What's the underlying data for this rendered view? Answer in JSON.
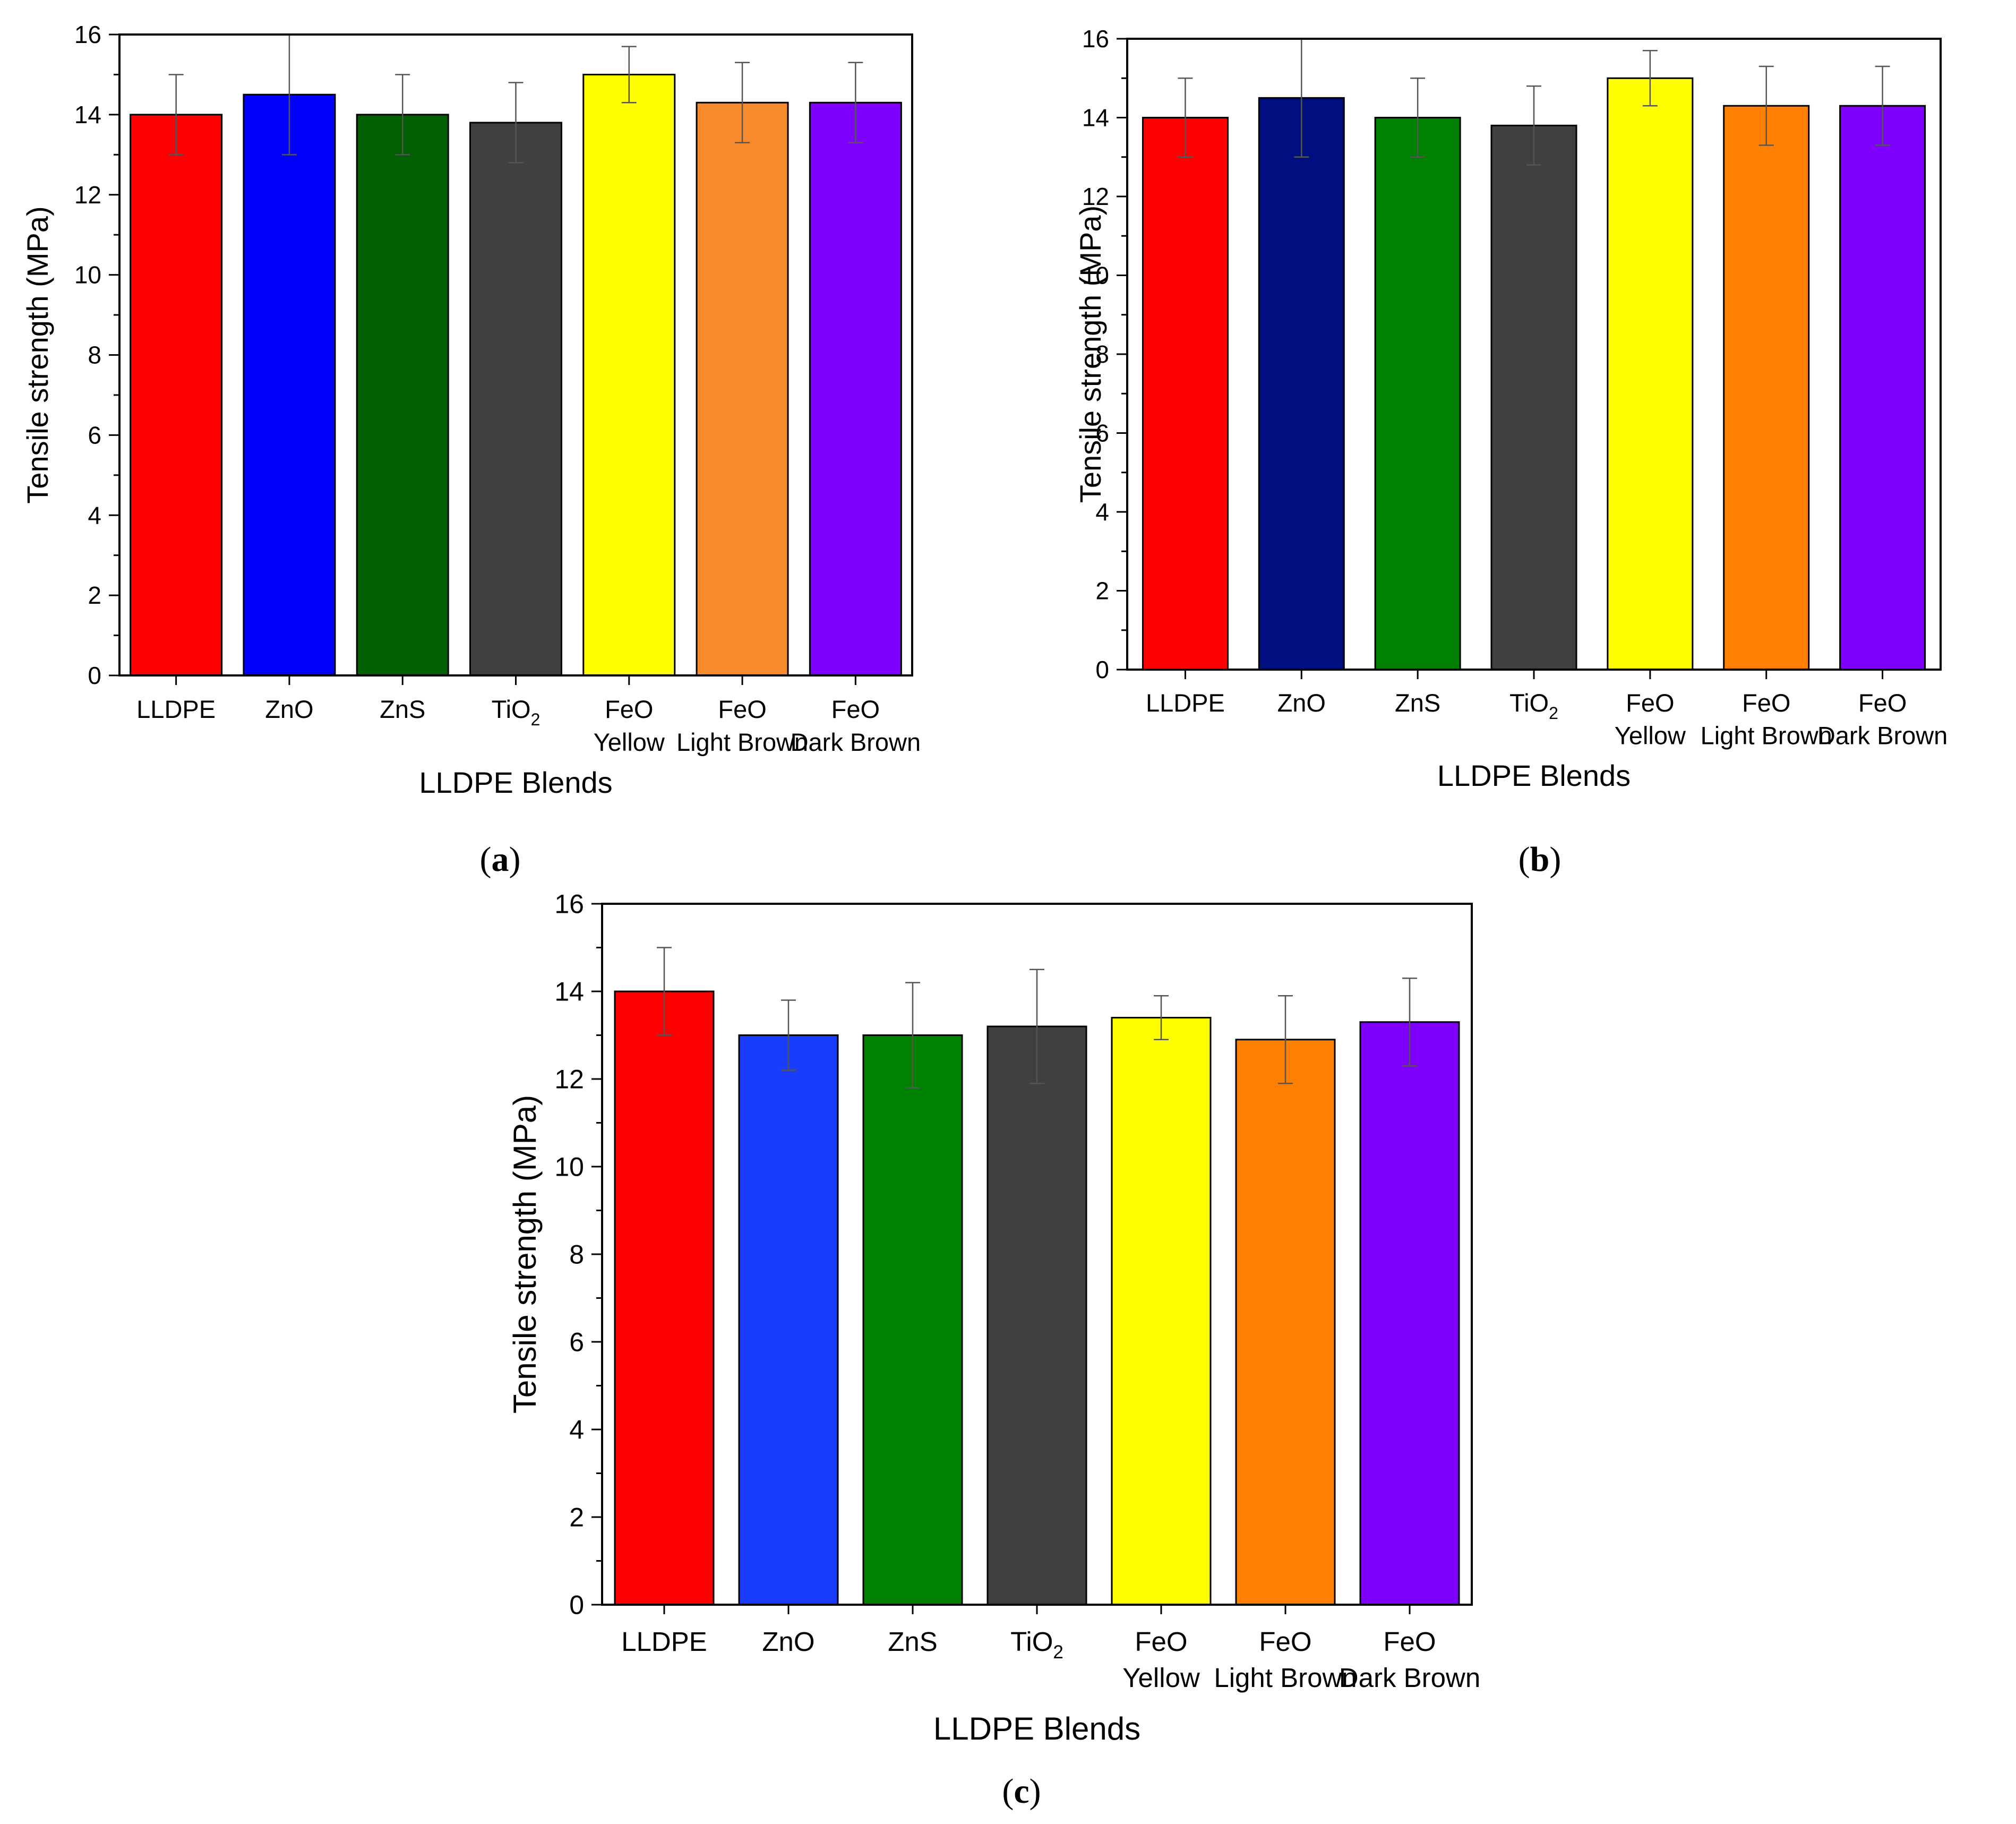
{
  "figure": {
    "panel_labels": [
      {
        "open": "(",
        "letter": "a",
        "close": ")"
      },
      {
        "open": "(",
        "letter": "b",
        "close": ")"
      },
      {
        "open": "(",
        "letter": "c",
        "close": ")"
      }
    ]
  },
  "chart_data": [
    {
      "panel": "a",
      "type": "bar",
      "title": "",
      "xlabel": "LLDPE Blends",
      "ylabel": "Tensile strength (MPa)",
      "ylim": [
        0,
        16
      ],
      "yticks": [
        "0",
        "2",
        "4",
        "6",
        "8",
        "10",
        "12",
        "14",
        "16"
      ],
      "categories": [
        {
          "line1": "LLDPE",
          "line2": ""
        },
        {
          "line1": "ZnO",
          "line2": ""
        },
        {
          "line1": "ZnS",
          "line2": ""
        },
        {
          "line1": "TiO",
          "sub": "2",
          "line2": ""
        },
        {
          "line1": "FeO",
          "line2": "Yellow"
        },
        {
          "line1": "FeO",
          "line2": "Light Brown"
        },
        {
          "line1": "FeO",
          "line2": "Dark Brown"
        }
      ],
      "values": [
        14.0,
        14.5,
        14.0,
        13.8,
        15.0,
        14.3,
        14.3
      ],
      "errors": [
        1.0,
        1.5,
        1.0,
        1.0,
        0.7,
        1.0,
        1.0
      ],
      "colors": [
        "#ff0000",
        "#0000ff",
        "#005f00",
        "#404040",
        "#ffff00",
        "#f78a2c",
        "#8000ff"
      ]
    },
    {
      "panel": "b",
      "type": "bar",
      "title": "",
      "xlabel": "LLDPE Blends",
      "ylabel": "Tensile strength (MPa)",
      "ylim": [
        0,
        16
      ],
      "yticks": [
        "0",
        "2",
        "4",
        "6",
        "8",
        "10",
        "12",
        "14",
        "16"
      ],
      "categories": [
        {
          "line1": "LLDPE",
          "line2": ""
        },
        {
          "line1": "ZnO",
          "line2": ""
        },
        {
          "line1": "ZnS",
          "line2": ""
        },
        {
          "line1": "TiO",
          "sub": "2",
          "line2": ""
        },
        {
          "line1": "FeO",
          "line2": "Yellow"
        },
        {
          "line1": "FeO",
          "line2": "Light Brown"
        },
        {
          "line1": "FeO",
          "line2": "Dark Brown"
        }
      ],
      "values": [
        14.0,
        14.5,
        14.0,
        13.8,
        15.0,
        14.3,
        14.3
      ],
      "errors": [
        1.0,
        1.5,
        1.0,
        1.0,
        0.7,
        1.0,
        1.0
      ],
      "colors": [
        "#ff0000",
        "#000f80",
        "#008000",
        "#404040",
        "#ffff00",
        "#ff8000",
        "#8000ff"
      ]
    },
    {
      "panel": "c",
      "type": "bar",
      "title": "",
      "xlabel": "LLDPE Blends",
      "ylabel": "Tensile strength (MPa)",
      "ylim": [
        0,
        16
      ],
      "yticks": [
        "0",
        "2",
        "4",
        "6",
        "8",
        "10",
        "12",
        "14",
        "16"
      ],
      "categories": [
        {
          "line1": "LLDPE",
          "line2": ""
        },
        {
          "line1": "ZnO",
          "line2": ""
        },
        {
          "line1": "ZnS",
          "line2": ""
        },
        {
          "line1": "TiO",
          "sub": "2",
          "line2": ""
        },
        {
          "line1": "FeO",
          "line2": "Yellow"
        },
        {
          "line1": "FeO",
          "line2": "Light Brown"
        },
        {
          "line1": "FeO",
          "line2": "Dark Brown"
        }
      ],
      "values": [
        14.0,
        13.0,
        13.0,
        13.2,
        13.4,
        12.9,
        13.3
      ],
      "errors": [
        1.0,
        0.8,
        1.2,
        1.3,
        0.5,
        1.0,
        1.0
      ],
      "colors": [
        "#ff0000",
        "#1a3cff",
        "#008000",
        "#404040",
        "#ffff00",
        "#ff8000",
        "#8000ff"
      ]
    }
  ]
}
